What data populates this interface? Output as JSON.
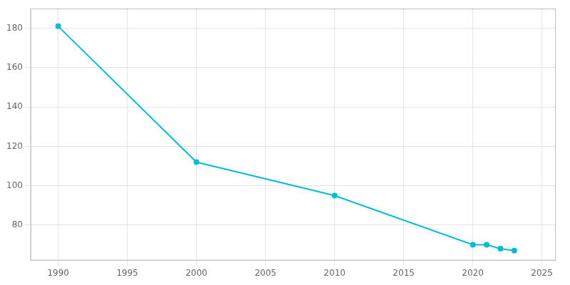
{
  "chart_data": {
    "type": "line",
    "x": [
      1990,
      2000,
      2010,
      2020,
      2021,
      2022,
      2023
    ],
    "values": [
      181,
      112,
      95,
      70,
      70,
      68,
      67
    ],
    "color": "#00BCD4",
    "marker": "circle",
    "xlim": [
      1988,
      2026
    ],
    "xticks": [
      1990,
      1995,
      2000,
      2005,
      2010,
      2015,
      2020,
      2025
    ],
    "ylim": [
      62,
      190
    ],
    "yticks": [
      80,
      100,
      120,
      140,
      160,
      180
    ],
    "grid": true
  }
}
